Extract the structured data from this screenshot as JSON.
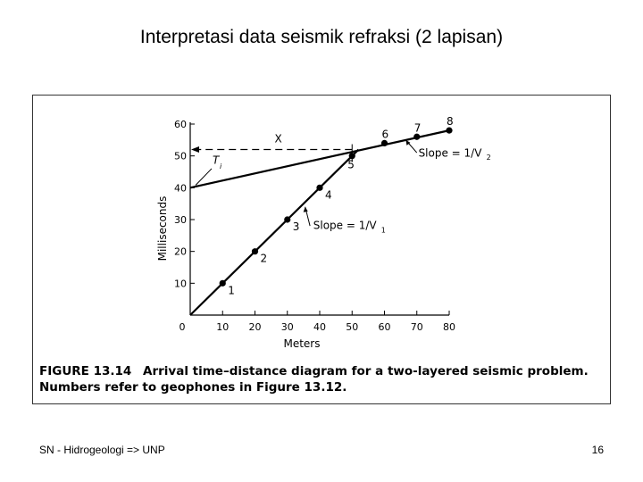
{
  "slide": {
    "title": "Interpretasi data seismik refraksi (2 lapisan)",
    "footer": "SN - Hidrogeologi => UNP",
    "page_number": "16"
  },
  "figure": {
    "caption_label": "FIGURE 13.14",
    "caption_text": "Arrival time–distance diagram for a two-layered seismic problem. Numbers refer to geophones in Figure 13.12."
  },
  "chart_data": {
    "type": "line",
    "xlabel": "Meters",
    "ylabel": "Milliseconds",
    "xlim": [
      0,
      80
    ],
    "ylim": [
      0,
      60
    ],
    "x_ticks": [
      0,
      10,
      20,
      30,
      40,
      50,
      60,
      70,
      80
    ],
    "y_ticks": [
      10,
      20,
      30,
      40,
      50,
      60
    ],
    "grid": false,
    "points": [
      {
        "label": "1",
        "x": 10,
        "y": 10
      },
      {
        "label": "2",
        "x": 20,
        "y": 20
      },
      {
        "label": "3",
        "x": 30,
        "y": 30
      },
      {
        "label": "4",
        "x": 40,
        "y": 40
      },
      {
        "label": "5",
        "x": 50,
        "y": 50
      },
      {
        "label": "6",
        "x": 60,
        "y": 54
      },
      {
        "label": "7",
        "x": 70,
        "y": 56
      },
      {
        "label": "8",
        "x": 80,
        "y": 58
      }
    ],
    "lines": [
      {
        "name": "Slope = 1/V1",
        "x": [
          0,
          52
        ],
        "y": [
          0,
          52
        ]
      },
      {
        "name": "Slope = 1/V2",
        "x": [
          0,
          80
        ],
        "y": [
          40,
          58
        ]
      }
    ],
    "annotations": {
      "slope1": "Slope = 1/V",
      "slope1_sub": "1",
      "slope2": "Slope = 1/V",
      "slope2_sub": "2",
      "intercept": "T",
      "intercept_sub": "i",
      "crossover": "X"
    }
  }
}
